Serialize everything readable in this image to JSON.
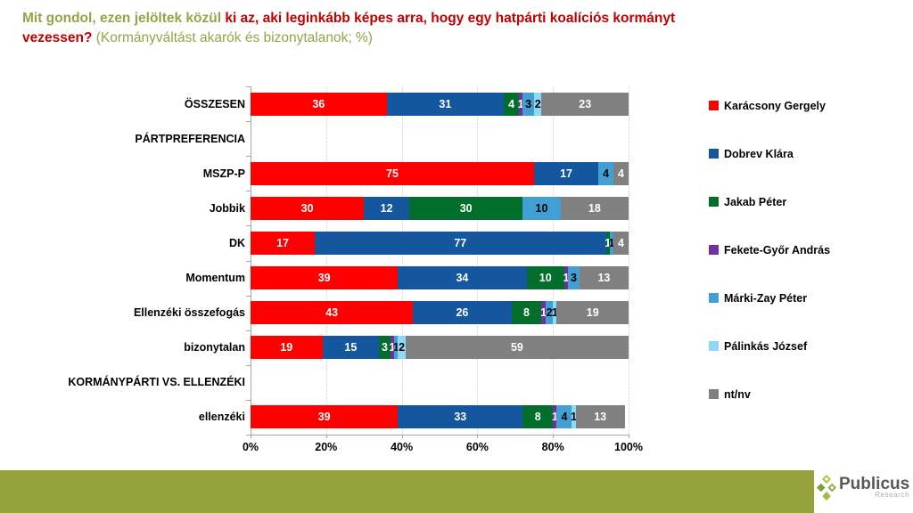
{
  "title": {
    "line1_olive": "Mit gondol, ezen jelöltek közül",
    "line1_red": "ki az, aki leginkább képes arra, hogy egy hatpárti koalíciós kormányt",
    "line2_red": "vezessen?",
    "line2_olive": "(Kormányváltást akarók és bizonytalanok; %)"
  },
  "colors": {
    "title_red": "#C00000",
    "title_olive": "#95A546",
    "footer_olive": "#96A33C",
    "axis": "#A6A6A6",
    "gridline": "#CFCFCF"
  },
  "chart_data": {
    "type": "bar",
    "stacked": true,
    "orientation": "horizontal",
    "xlim": [
      0,
      100
    ],
    "grid": "dotted-vertical-every-20pct",
    "legend_position": "right",
    "xticks": [
      "0%",
      "20%",
      "40%",
      "60%",
      "80%",
      "100%"
    ],
    "categories": [
      "ÖSSZESEN",
      "PÁRTPREFERENCIA",
      "MSZP-P",
      "Jobbik",
      "DK",
      "Momentum",
      "Ellenzéki összefogás",
      "bizonytalan",
      "KORMÁNYPÁRTI VS. ELLENZÉKI",
      "ellenzéki"
    ],
    "series": [
      {
        "name": "Karácsony Gergely",
        "color": "#FF0000",
        "label_color": "#FFFFFF",
        "values": [
          36,
          null,
          75,
          30,
          17,
          39,
          43,
          19,
          null,
          39
        ]
      },
      {
        "name": "Dobrev Klára",
        "color": "#15579E",
        "label_color": "#FFFFFF",
        "values": [
          31,
          null,
          17,
          12,
          77,
          34,
          26,
          15,
          null,
          33
        ]
      },
      {
        "name": "Jakab Péter",
        "color": "#016F2B",
        "label_color": "#FFFFFF",
        "values": [
          4,
          null,
          0,
          30,
          1,
          10,
          8,
          3,
          null,
          8
        ]
      },
      {
        "name": "Fekete-Győr András",
        "color": "#7030A0",
        "label_color": "#FFFFFF",
        "values": [
          1,
          null,
          0,
          0,
          0,
          1,
          1,
          1,
          null,
          1
        ]
      },
      {
        "name": "Márki-Zay Péter",
        "color": "#429FD4",
        "label_color": "#000000",
        "values": [
          3,
          null,
          4,
          10,
          1,
          3,
          2,
          1,
          null,
          4
        ]
      },
      {
        "name": "Pálinkás József",
        "color": "#8FD9F8",
        "label_color": "#000000",
        "values": [
          2,
          null,
          0,
          0,
          0,
          0,
          1,
          2,
          null,
          1
        ]
      },
      {
        "name": "nt/nv",
        "color": "#808080",
        "label_color": "#FFFFFF",
        "values": [
          23,
          null,
          4,
          18,
          4,
          13,
          19,
          59,
          null,
          13
        ]
      }
    ]
  },
  "footer": {
    "brand": "Publicus",
    "brand_sub": "Research"
  }
}
